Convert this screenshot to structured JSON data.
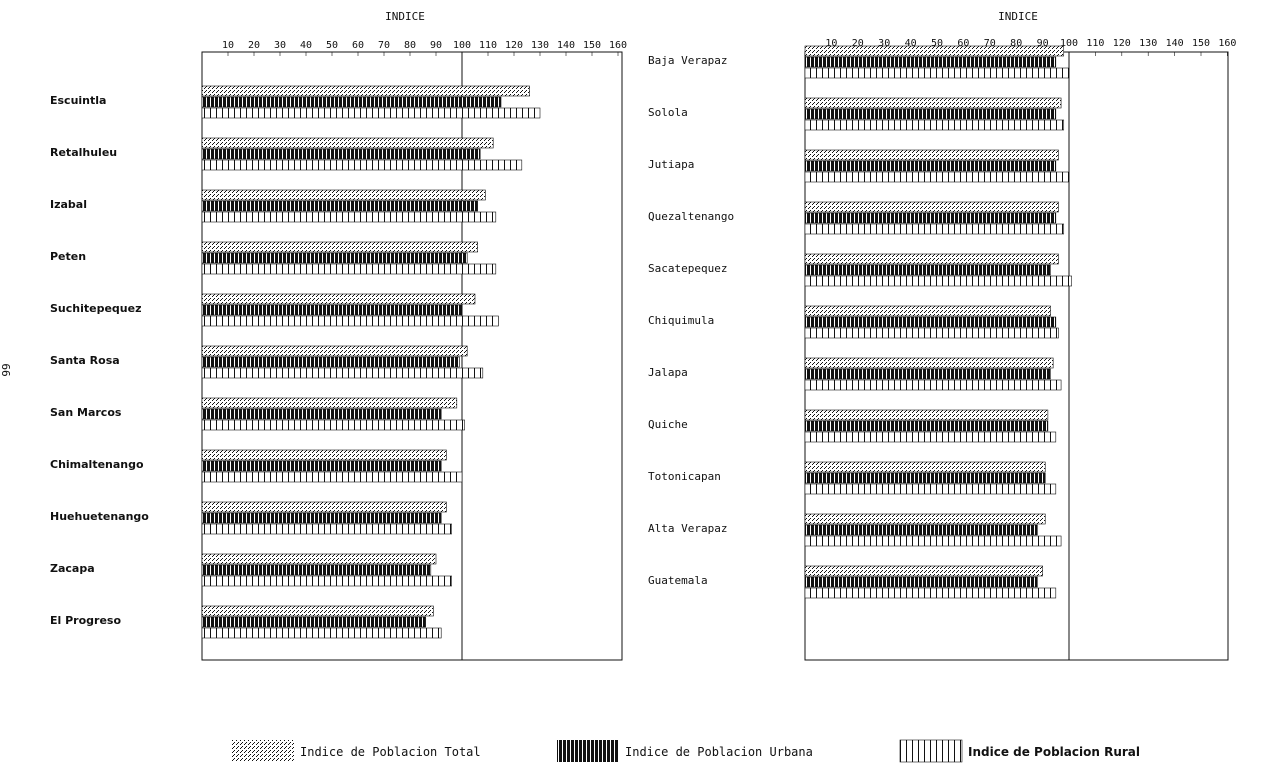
{
  "page_number": "99",
  "legend": {
    "total": "Indice de Poblacion Total",
    "urban": "Indice de Poblacion Urbana",
    "rural": "Indice de Poblacion Rural"
  },
  "colors": {
    "ink": "#111111",
    "paper": "#ffffff"
  },
  "chart_data": [
    {
      "type": "bar",
      "orientation": "horizontal",
      "title": "INDICE",
      "ticks": [
        "10",
        "20",
        "30",
        "40",
        "50",
        "60",
        "70",
        "80",
        "90",
        "100",
        "110",
        "120",
        "130",
        "140",
        "150",
        "160"
      ],
      "xlim": [
        0,
        160
      ],
      "reference_line": 100,
      "categories": [
        "Escuintla",
        "Retalhuleu",
        "Izabal",
        "Peten",
        "Suchitepequez",
        "Santa Rosa",
        "San Marcos",
        "Chimaltenango",
        "Huehuetenango",
        "Zacapa",
        "El Progreso"
      ],
      "series": [
        {
          "name": "Indice de Poblacion Total",
          "values": [
            126,
            112,
            109,
            106,
            105,
            102,
            98,
            94,
            94,
            90,
            89
          ]
        },
        {
          "name": "Indice de Poblacion Urbana",
          "values": [
            115,
            107,
            106,
            102,
            100,
            99,
            92,
            92,
            92,
            88,
            86
          ]
        },
        {
          "name": "Indice de Poblacion Rural",
          "values": [
            130,
            123,
            113,
            113,
            114,
            108,
            101,
            100,
            96,
            96,
            92
          ]
        }
      ]
    },
    {
      "type": "bar",
      "orientation": "horizontal",
      "title": "INDICE",
      "ticks": [
        "10",
        "20",
        "30",
        "40",
        "50",
        "60",
        "70",
        "80",
        "90",
        "100",
        "110",
        "120",
        "130",
        "140",
        "150",
        "160"
      ],
      "xlim": [
        0,
        160
      ],
      "reference_line": 100,
      "categories": [
        "Baja Verapaz",
        "Solola",
        "Jutiapa",
        "Quezaltenango",
        "Sacatepequez",
        "Chiquimula",
        "Jalapa",
        "Quiche",
        "Totonicapan",
        "Alta Verapaz",
        "Guatemala"
      ],
      "series": [
        {
          "name": "Indice de Poblacion Total",
          "values": [
            98,
            97,
            96,
            96,
            96,
            93,
            94,
            92,
            91,
            91,
            90
          ]
        },
        {
          "name": "Indice de Poblacion Urbana",
          "values": [
            95,
            95,
            95,
            95,
            93,
            95,
            93,
            92,
            91,
            88,
            88
          ]
        },
        {
          "name": "Indice de Poblacion Rural",
          "values": [
            100,
            98,
            100,
            98,
            101,
            96,
            97,
            95,
            95,
            97,
            95
          ]
        }
      ]
    }
  ]
}
